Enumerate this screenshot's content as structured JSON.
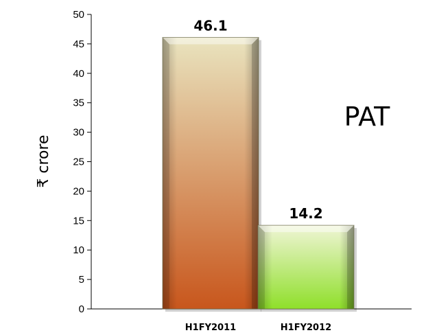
{
  "chart_data": {
    "type": "bar",
    "title": "PAT",
    "ylabel": "₹ crore",
    "xlabel": "",
    "categories": [
      "H1FY2011",
      "H1FY2012"
    ],
    "values": [
      46.1,
      14.2
    ],
    "data_labels": [
      "46.1",
      "14.2"
    ],
    "ylim": [
      0,
      50
    ],
    "yticks": [
      0,
      5,
      10,
      15,
      20,
      25,
      30,
      35,
      40,
      45,
      50
    ],
    "grid": false,
    "legend": "none",
    "bar_colors": [
      {
        "top": "#e9e4bf",
        "bottom": "#c8561c"
      },
      {
        "top": "#f0f5d6",
        "bottom": "#8fdf2a"
      }
    ]
  }
}
